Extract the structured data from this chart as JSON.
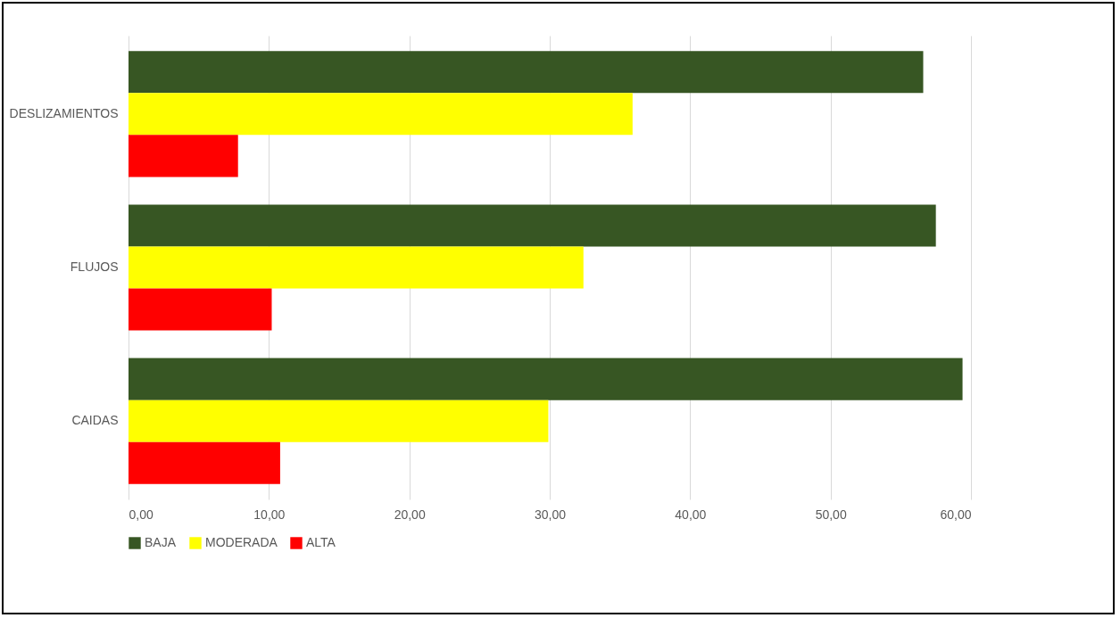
{
  "chart_data": {
    "type": "bar",
    "orientation": "horizontal",
    "categories": [
      "DESLIZAMIENTOS",
      "FLUJOS",
      "CAIDAS"
    ],
    "series": [
      {
        "name": "BAJA",
        "color": "#375623",
        "values": [
          56.6,
          57.5,
          59.4
        ]
      },
      {
        "name": "MODERADA",
        "color": "#ffff00",
        "values": [
          35.9,
          32.4,
          29.9
        ]
      },
      {
        "name": "ALTA",
        "color": "#ff0000",
        "values": [
          7.8,
          10.2,
          10.8
        ]
      }
    ],
    "xlim": [
      0,
      60
    ],
    "xticks": [
      {
        "value": 0,
        "label": "0,00"
      },
      {
        "value": 10,
        "label": "10,00"
      },
      {
        "value": 20,
        "label": "20,00"
      },
      {
        "value": 30,
        "label": "30,00"
      },
      {
        "value": 40,
        "label": "40,00"
      },
      {
        "value": 50,
        "label": "50,00"
      },
      {
        "value": 60,
        "label": "60,00"
      }
    ],
    "grid": "x",
    "legend": "bottom"
  }
}
